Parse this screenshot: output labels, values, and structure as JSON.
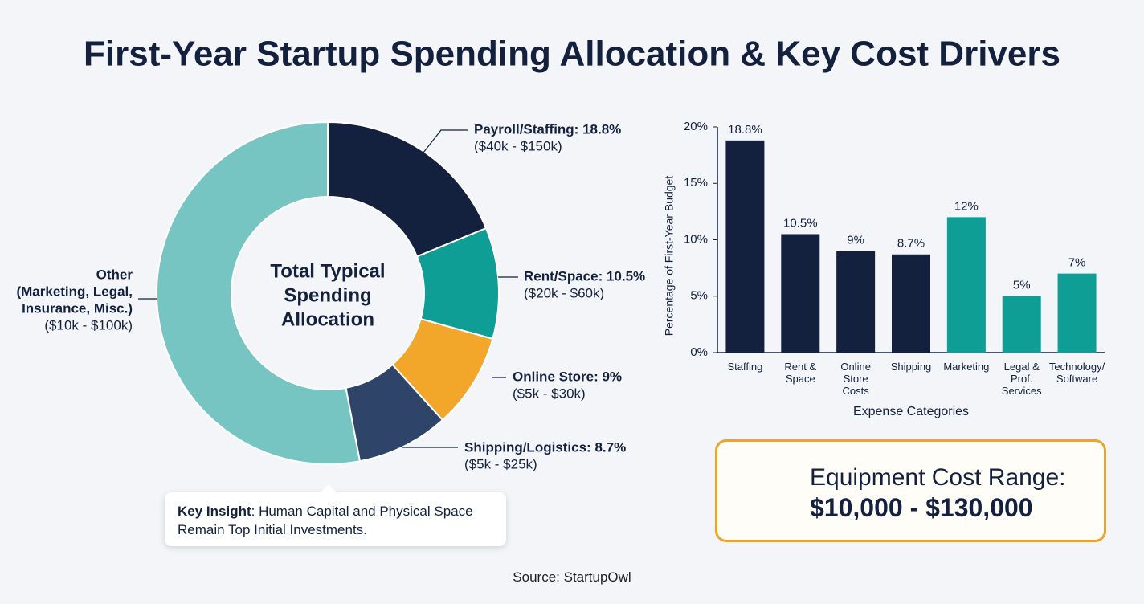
{
  "title": "First-Year Startup Spending Allocation & Key Cost Drivers",
  "chart_data": [
    {
      "type": "donut",
      "center_label": [
        "Total Typical",
        "Spending",
        "Allocation"
      ],
      "labels": [
        [
          "Payroll/Staffing: 18.8%"
        ],
        [
          "Rent/Space: 10.5%"
        ],
        [
          "Online Store: 9%"
        ],
        [
          "Shipping/Logistics: 8.7%"
        ],
        [
          "Other",
          "(Marketing, Legal,",
          "Insurance, Misc.)"
        ]
      ],
      "ranges": [
        "($40k - $150k)",
        "($20k - $60k)",
        "($5k - $30k)",
        "($5k - $25k)",
        "($10k - $100k)"
      ],
      "values": [
        18.8,
        10.5,
        9,
        8.7,
        53
      ],
      "colors": [
        "#13213f",
        "#0e9e96",
        "#f2a62a",
        "#2e4468",
        "#76c5c3"
      ]
    },
    {
      "type": "bar",
      "categories": [
        "Staffing",
        "Rent & Space",
        "Online Store Costs",
        "Shipping",
        "Marketing",
        "Legal & Prof. Services",
        "Technology/ Software"
      ],
      "values": [
        18.8,
        10.5,
        9,
        8.7,
        12,
        5,
        7
      ],
      "value_labels": [
        "18.8%",
        "10.5%",
        "9%",
        "8.7%",
        "12%",
        "5%",
        "7%"
      ],
      "colors": [
        "#13213f",
        "#13213f",
        "#13213f",
        "#13213f",
        "#0e9e96",
        "#0e9e96",
        "#0e9e96"
      ],
      "ylim": [
        0,
        20
      ],
      "yticks": [
        {
          "value": 0,
          "label": "0%"
        },
        {
          "value": 5,
          "label": "5%"
        },
        {
          "value": 10,
          "label": "10%"
        },
        {
          "value": 15,
          "label": "15%"
        },
        {
          "value": 20,
          "label": "20%"
        }
      ],
      "ylabel": "Percentage of First-Year Budget",
      "xlabel": "Expense Categories",
      "grid": false
    }
  ],
  "key_insight": {
    "label": "Key Insight",
    "text": ": Human Capital and Physical Space Remain Top Initial Investments."
  },
  "equipment": {
    "label": "Equipment Cost Range:",
    "value": "$10,000 - $130,000"
  },
  "source": "Source: StartupOwl"
}
